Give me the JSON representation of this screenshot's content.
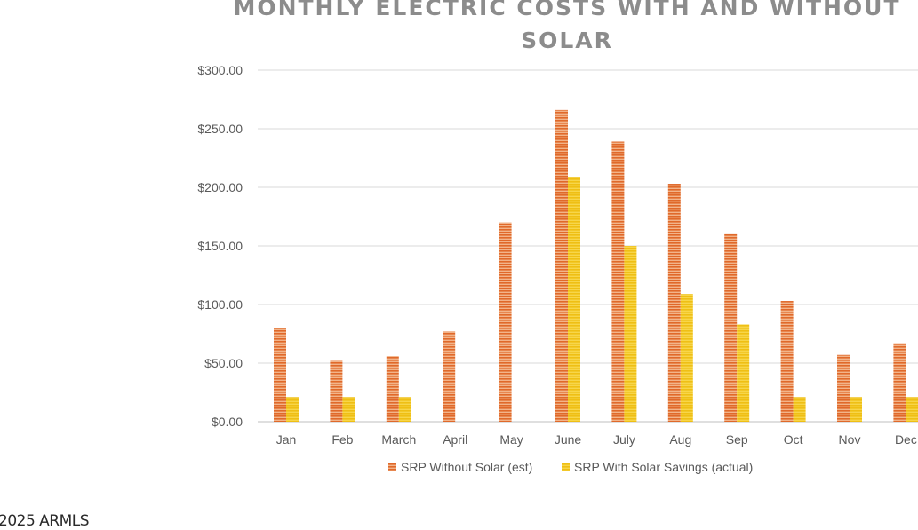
{
  "chart_data": {
    "type": "bar",
    "title_lines": [
      "MONTHLY ELECTRIC COSTS WITH AND WITHOUT",
      "SOLAR"
    ],
    "categories": [
      "Jan",
      "Feb",
      "March",
      "April",
      "May",
      "June",
      "July",
      "Aug",
      "Sep",
      "Oct",
      "Nov",
      "Dec"
    ],
    "series": [
      {
        "name": "SRP Without Solar (est)",
        "color": "#e07b3f",
        "values": [
          80,
          52,
          56,
          77,
          170,
          266,
          239,
          203,
          160,
          103,
          57,
          67
        ]
      },
      {
        "name": "SRP With Solar Savings (actual)",
        "color": "#f5c71a",
        "values": [
          21,
          21,
          21,
          null,
          null,
          209,
          150,
          109,
          83,
          21,
          21,
          21
        ]
      }
    ],
    "ylim": [
      0,
      300
    ],
    "yticks": [
      "$0.00",
      "$50.00",
      "$100.00",
      "$150.00",
      "$200.00",
      "$250.00",
      "$300.00"
    ],
    "grid": true,
    "legend_position": "bottom"
  },
  "copyright": "2025 ARMLS"
}
